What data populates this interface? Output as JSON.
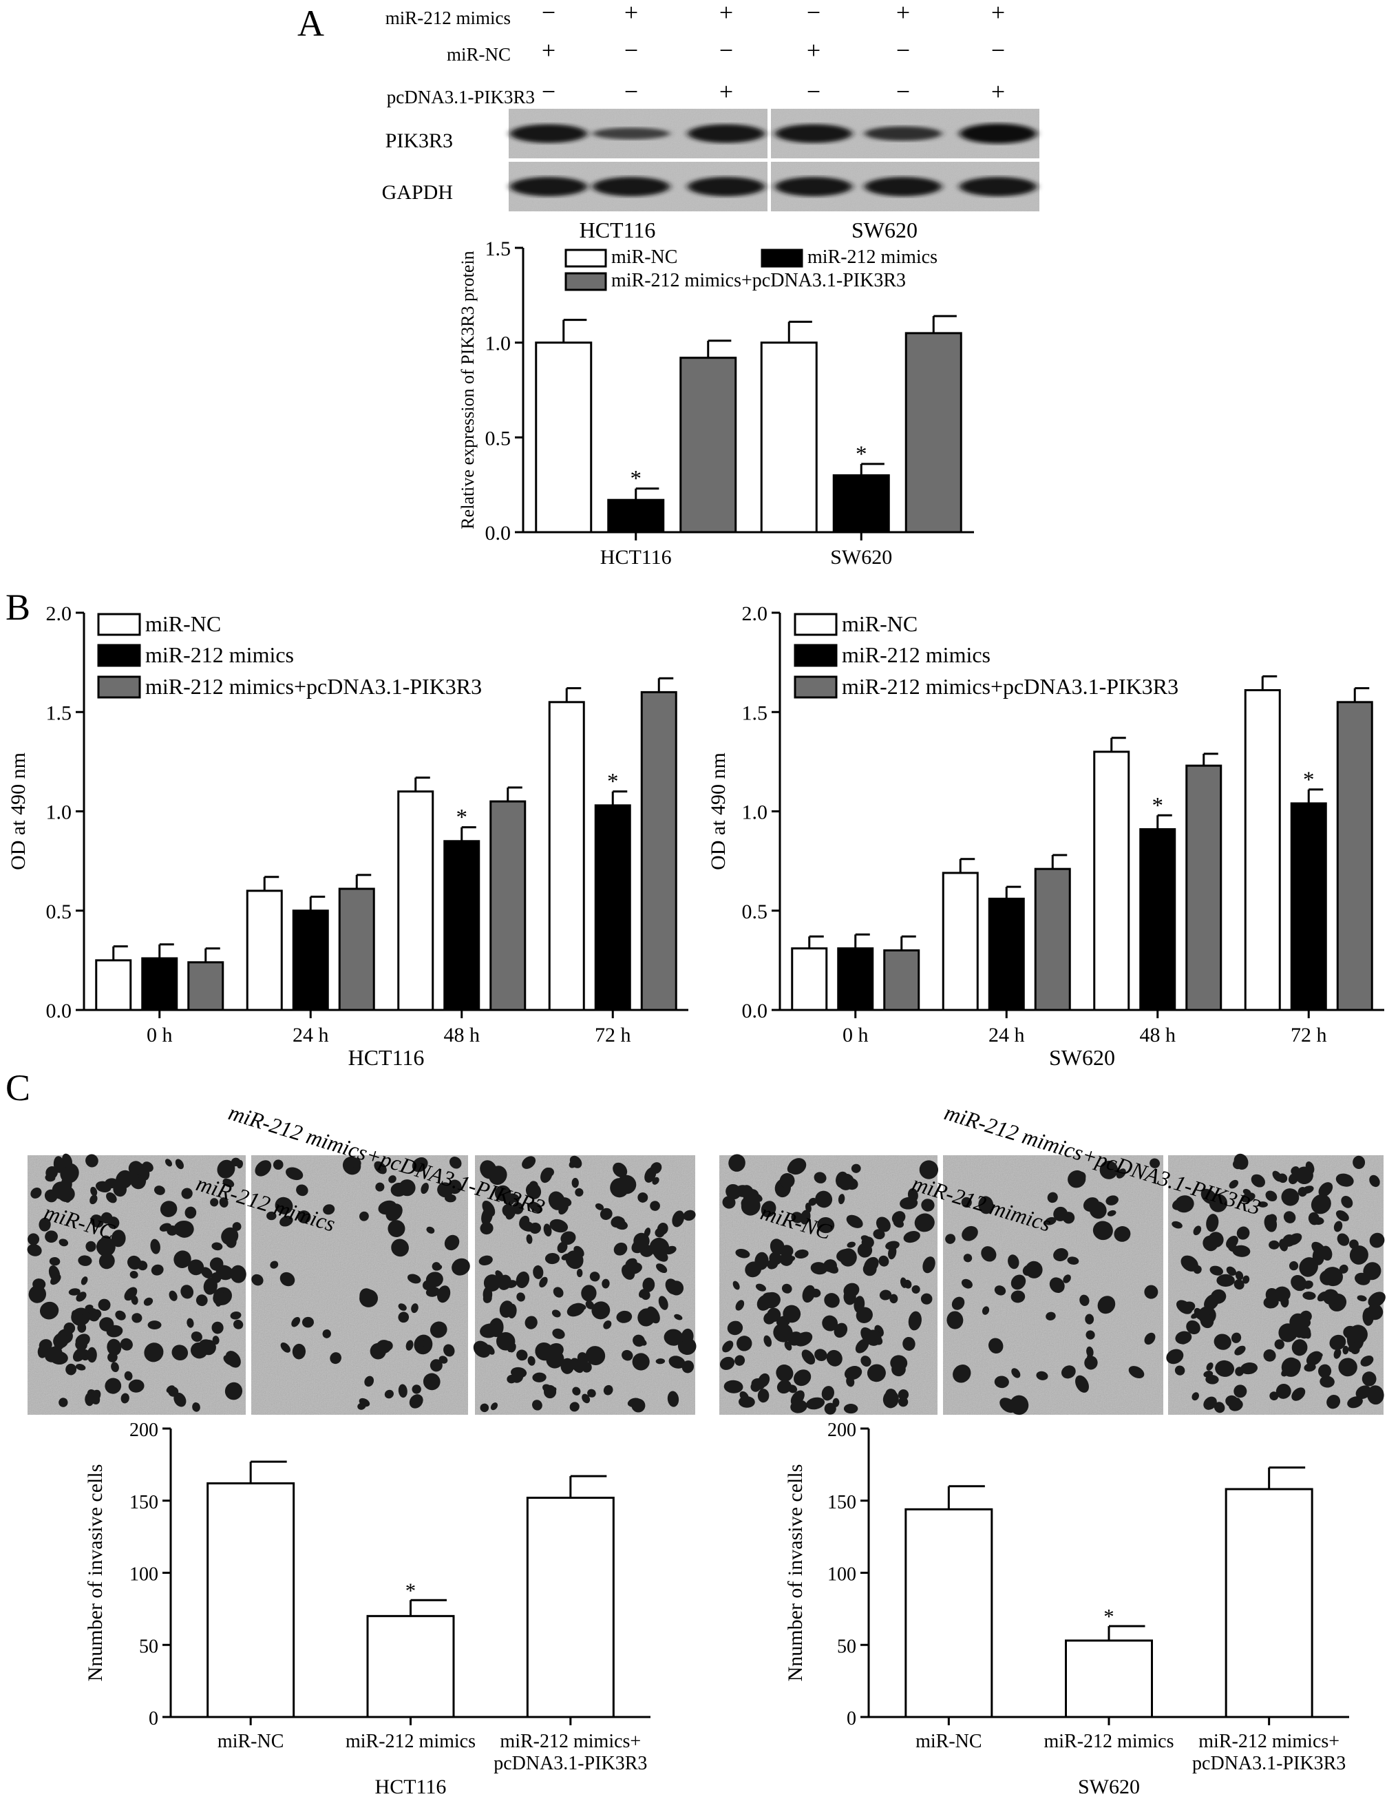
{
  "panel_labels": [
    "A",
    "B",
    "C"
  ],
  "colors": {
    "white_bar": "#ffffff",
    "black_bar": "#000000",
    "gray_bar": "#6e6e6e",
    "stroke": "#000000"
  },
  "western_blot": {
    "treatment_rows": [
      {
        "label": "miR-212 mimics",
        "signs": [
          "−",
          "+",
          "+",
          "−",
          "+",
          "+"
        ]
      },
      {
        "label": "miR-NC",
        "signs": [
          "+",
          "−",
          "−",
          "+",
          "−",
          "−"
        ]
      },
      {
        "label": "pcDNA3.1-PIK3R3",
        "signs": [
          "−",
          "−",
          "+",
          "−",
          "−",
          "+"
        ]
      }
    ],
    "blot_rows": [
      {
        "label": "PIK3R3",
        "band_strength": [
          0.85,
          0.35,
          0.85,
          0.85,
          0.55,
          0.95
        ]
      },
      {
        "label": "GAPDH",
        "band_strength": [
          0.9,
          0.9,
          0.9,
          0.9,
          0.9,
          0.9
        ]
      }
    ],
    "cell_lines": [
      "HCT116",
      "SW620"
    ]
  },
  "legend_labels": [
    "miR-NC",
    "miR-212 mimics",
    "miR-212 mimics+pcDNA3.1-PIK3R3"
  ],
  "cell_images": {
    "groups": [
      {
        "name": "HCT116",
        "labels": [
          "miR-NC",
          "miR-212 mimics",
          "miR-212 mimics+pcDNA3.1-PIK3R3"
        ],
        "density": [
          150,
          70,
          150
        ]
      },
      {
        "name": "SW620",
        "labels": [
          "miR-NC",
          "miR-212 mimics",
          "miR-212 mimics+pcDNA3.1-PIK3R3"
        ],
        "density": [
          140,
          55,
          155
        ]
      }
    ]
  },
  "chart_data": [
    {
      "id": "A",
      "type": "bar",
      "ylabel": "Relative expression of PIK3R3 protein",
      "ylim": [
        0,
        1.5
      ],
      "yticks": [
        "0.0",
        "0.5",
        "1.0",
        "1.5"
      ],
      "categories": [
        "HCT116",
        "SW620"
      ],
      "legend": "top-right",
      "series": [
        {
          "name": "miR-NC",
          "values": [
            1.0,
            1.0
          ],
          "errors": [
            0.12,
            0.11
          ],
          "color": "#ffffff"
        },
        {
          "name": "miR-212 mimics",
          "values": [
            0.17,
            0.3
          ],
          "errors": [
            0.06,
            0.06
          ],
          "color": "#000000",
          "stars": [
            "*",
            "*"
          ]
        },
        {
          "name": "miR-212 mimics+pcDNA3.1-PIK3R3",
          "values": [
            0.92,
            1.05
          ],
          "errors": [
            0.09,
            0.09
          ],
          "color": "#6e6e6e"
        }
      ]
    },
    {
      "id": "B-HCT116",
      "type": "bar",
      "xlabel": "HCT116",
      "ylabel": "OD at 490 nm",
      "ylim": [
        0,
        2.0
      ],
      "yticks": [
        "0.0",
        "0.5",
        "1.0",
        "1.5",
        "2.0"
      ],
      "categories": [
        "0 h",
        "24 h",
        "48 h",
        "72 h"
      ],
      "legend": "top-left",
      "series": [
        {
          "name": "miR-NC",
          "values": [
            0.25,
            0.6,
            1.1,
            1.55
          ],
          "errors": [
            0.07,
            0.07,
            0.07,
            0.07
          ],
          "color": "#ffffff"
        },
        {
          "name": "miR-212 mimics",
          "values": [
            0.26,
            0.5,
            0.85,
            1.03
          ],
          "errors": [
            0.07,
            0.07,
            0.07,
            0.07
          ],
          "color": "#000000",
          "stars": [
            "",
            "",
            "*",
            "*"
          ]
        },
        {
          "name": "miR-212 mimics+pcDNA3.1-PIK3R3",
          "values": [
            0.24,
            0.61,
            1.05,
            1.6
          ],
          "errors": [
            0.07,
            0.07,
            0.07,
            0.07
          ],
          "color": "#6e6e6e"
        }
      ]
    },
    {
      "id": "B-SW620",
      "type": "bar",
      "xlabel": "SW620",
      "ylabel": "OD at 490 nm",
      "ylim": [
        0,
        2.0
      ],
      "yticks": [
        "0.0",
        "0.5",
        "1.0",
        "1.5",
        "2.0"
      ],
      "categories": [
        "0 h",
        "24 h",
        "48 h",
        "72 h"
      ],
      "legend": "top-left",
      "series": [
        {
          "name": "miR-NC",
          "values": [
            0.31,
            0.69,
            1.3,
            1.61
          ],
          "errors": [
            0.06,
            0.07,
            0.07,
            0.07
          ],
          "color": "#ffffff"
        },
        {
          "name": "miR-212 mimics",
          "values": [
            0.31,
            0.56,
            0.91,
            1.04
          ],
          "errors": [
            0.07,
            0.06,
            0.07,
            0.07
          ],
          "color": "#000000",
          "stars": [
            "",
            "",
            "*",
            "*"
          ]
        },
        {
          "name": "miR-212 mimics+pcDNA3.1-PIK3R3",
          "values": [
            0.3,
            0.71,
            1.23,
            1.55
          ],
          "errors": [
            0.07,
            0.07,
            0.06,
            0.07
          ],
          "color": "#6e6e6e"
        }
      ]
    },
    {
      "id": "C-HCT116",
      "type": "bar",
      "xlabel": "HCT116",
      "ylabel": "Nnumber of invasive cells",
      "ylim": [
        0,
        200
      ],
      "yticks": [
        "0",
        "50",
        "100",
        "150",
        "200"
      ],
      "categories": [
        "miR-NC",
        "miR-212 mimics",
        "miR-212 mimics+|pcDNA3.1-PIK3R3"
      ],
      "values": [
        162,
        70,
        152
      ],
      "errors": [
        15,
        11,
        15
      ],
      "stars": [
        "",
        "*",
        ""
      ],
      "color": "#ffffff"
    },
    {
      "id": "C-SW620",
      "type": "bar",
      "xlabel": "SW620",
      "ylabel": "Nnumber of invasive cells",
      "ylim": [
        0,
        200
      ],
      "yticks": [
        "0",
        "50",
        "100",
        "150",
        "200"
      ],
      "categories": [
        "miR-NC",
        "miR-212 mimics",
        "miR-212 mimics+|pcDNA3.1-PIK3R3"
      ],
      "values": [
        144,
        53,
        158
      ],
      "errors": [
        16,
        10,
        15
      ],
      "stars": [
        "",
        "*",
        ""
      ],
      "color": "#ffffff"
    }
  ]
}
